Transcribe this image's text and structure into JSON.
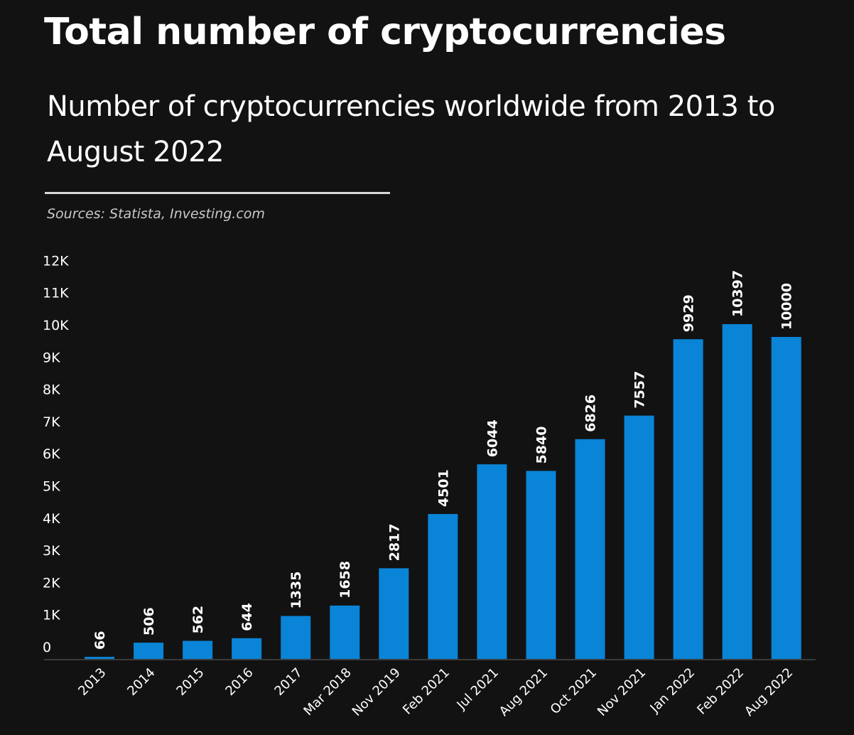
{
  "title": "Total number of cryptocurrencies",
  "subtitle": "Number of cryptocurrencies worldwide from 2013 to August 2022",
  "source": "Sources: Statista, Investing.com",
  "colors": {
    "background": "#121212",
    "bar": "#0a84d6",
    "text": "#ffffff",
    "axis": "#3a3a3a"
  },
  "chart_data": {
    "type": "bar",
    "categories": [
      "2013",
      "2014",
      "2015",
      "2016",
      "2017",
      "Mar 2018",
      "Nov 2019",
      "Feb 2021",
      "Jul 2021",
      "Aug 2021",
      "Oct 2021",
      "Nov 2021",
      "Jan 2022",
      "Feb 2022",
      "Aug 2022"
    ],
    "values": [
      66,
      506,
      562,
      644,
      1335,
      1658,
      2817,
      4501,
      6044,
      5840,
      6826,
      7557,
      9929,
      10397,
      10000
    ],
    "data_labels": [
      "66",
      "506",
      "562",
      "644",
      "1335",
      "1658",
      "2817",
      "4501",
      "6044",
      "5840",
      "6826",
      "7557",
      "9929",
      "10397",
      "10000"
    ],
    "yticks": [
      0,
      1000,
      2000,
      3000,
      4000,
      5000,
      6000,
      7000,
      8000,
      9000,
      10000,
      11000,
      12000
    ],
    "ytick_labels": [
      "0",
      "1K",
      "2K",
      "3K",
      "4K",
      "5K",
      "6K",
      "7K",
      "8K",
      "9K",
      "10K",
      "11K",
      "12K"
    ],
    "ylim": [
      0,
      12000
    ],
    "grid": false,
    "legend": "none"
  }
}
